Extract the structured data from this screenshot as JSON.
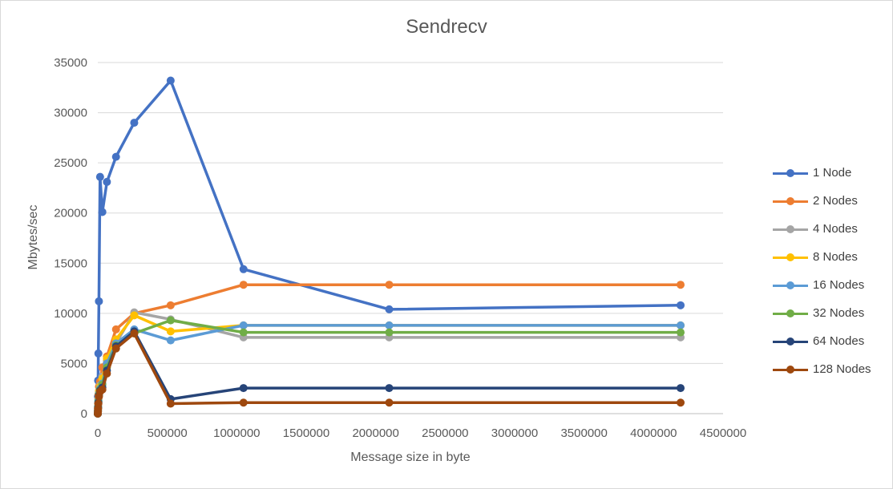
{
  "chart_data": {
    "type": "line",
    "title": "Sendrecv",
    "xlabel": "Message size in byte",
    "ylabel": "Mbytes/sec",
    "xlim": [
      0,
      4500000
    ],
    "ylim": [
      0,
      35000
    ],
    "xticks": [
      0,
      500000,
      1000000,
      1500000,
      2000000,
      2500000,
      3000000,
      3500000,
      4000000,
      4500000
    ],
    "yticks": [
      0,
      5000,
      10000,
      15000,
      20000,
      25000,
      30000,
      35000
    ],
    "grid": "horizontal",
    "legend_position": "right",
    "x": [
      0,
      1024,
      2048,
      4096,
      8192,
      16384,
      32768,
      65536,
      131072,
      262144,
      524288,
      1048576,
      2097152,
      4194304
    ],
    "series": [
      {
        "name": "1 Node",
        "color": "#4472c4",
        "values": [
          0,
          1700,
          3300,
          6000,
          11200,
          23600,
          20100,
          23100,
          25600,
          29000,
          33200,
          14400,
          10400,
          10800
        ]
      },
      {
        "name": "2 Nodes",
        "color": "#ed7d31",
        "values": [
          0,
          500,
          1000,
          1900,
          2700,
          3200,
          4600,
          5700,
          8400,
          10000,
          10800,
          12850,
          12850,
          12850
        ]
      },
      {
        "name": "4 Nodes",
        "color": "#a5a5a5",
        "values": [
          0,
          400,
          800,
          1500,
          2300,
          2800,
          3700,
          5300,
          7000,
          10100,
          9400,
          7600,
          7600,
          7600
        ]
      },
      {
        "name": "8 Nodes",
        "color": "#ffc000",
        "values": [
          0,
          350,
          750,
          1400,
          2200,
          2700,
          3500,
          5500,
          7400,
          9800,
          8200,
          8800,
          8800,
          8800
        ]
      },
      {
        "name": "16 Nodes",
        "color": "#5b9bd5",
        "values": [
          0,
          300,
          700,
          1300,
          2000,
          2500,
          3000,
          5000,
          7000,
          8400,
          7300,
          8800,
          8800,
          8800
        ]
      },
      {
        "name": "32 Nodes",
        "color": "#70ad47",
        "values": [
          0,
          280,
          650,
          1200,
          1900,
          2400,
          2900,
          4600,
          6800,
          8000,
          9300,
          8100,
          8100,
          8100
        ]
      },
      {
        "name": "64 Nodes",
        "color": "#264478",
        "values": [
          0,
          250,
          600,
          1100,
          1800,
          2300,
          2600,
          4300,
          6700,
          8200,
          1450,
          2550,
          2550,
          2550
        ]
      },
      {
        "name": "128 Nodes",
        "color": "#9e480e",
        "values": [
          0,
          200,
          500,
          1000,
          1700,
          2200,
          2400,
          4000,
          6500,
          8000,
          1000,
          1100,
          1100,
          1100
        ]
      }
    ]
  }
}
